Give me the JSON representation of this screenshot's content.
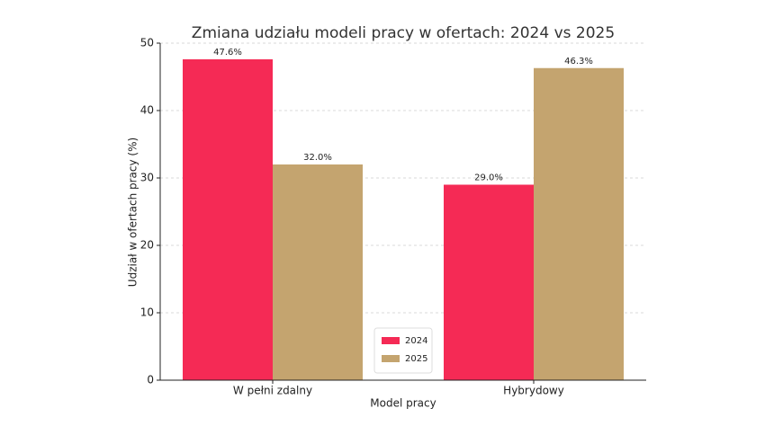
{
  "chart_data": {
    "type": "bar",
    "title": "Zmiana udziału modeli pracy w ofertach: 2024 vs 2025",
    "x_label": "Model pracy",
    "y_label": "Udział w ofertach pracy (%)",
    "categories": [
      "W pełni zdalny",
      "Hybrydowy"
    ],
    "series": [
      {
        "name": "2024",
        "color": "#f52a55",
        "values": [
          47.6,
          29.0
        ],
        "value_labels": [
          "47.6%",
          "29.0%"
        ]
      },
      {
        "name": "2025",
        "color": "#c4a46f",
        "values": [
          32.0,
          46.3
        ],
        "value_labels": [
          "32.0%",
          "46.3%"
        ]
      }
    ],
    "ylim": [
      0,
      50
    ],
    "yticks": [
      0,
      10,
      20,
      30,
      40,
      50
    ],
    "grid": true,
    "legend": "lower center"
  }
}
